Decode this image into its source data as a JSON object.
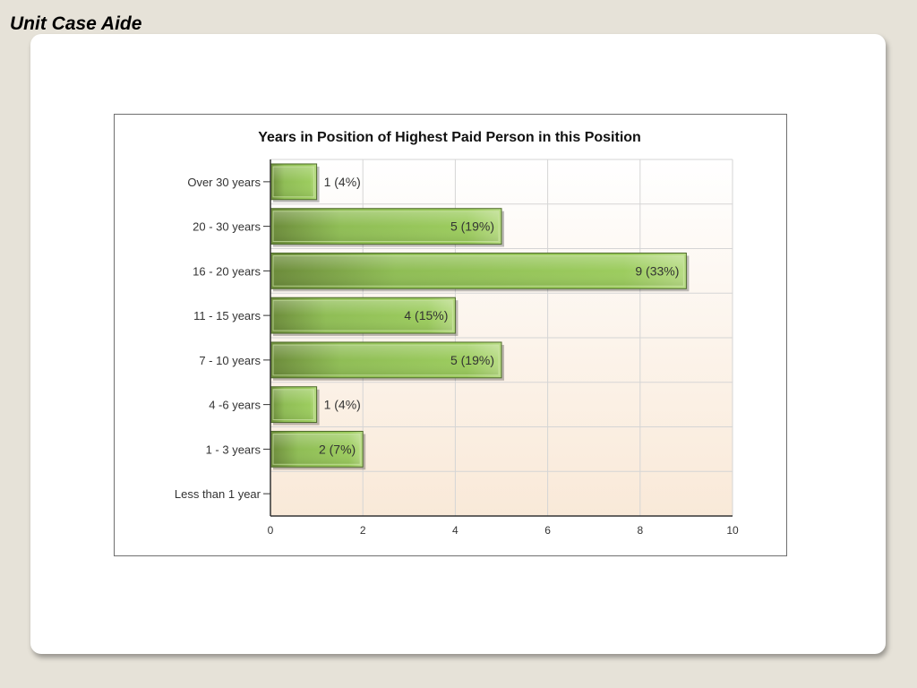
{
  "slide": {
    "title": "Unit Case Aide"
  },
  "colors": {
    "bar_dark": "#6b8a3a",
    "bar_mid": "#8fbd55",
    "bar_light": "#a8d46a",
    "bar_border": "#4e6a2a",
    "plot_top": "#ffffff",
    "plot_bottom": "#f9e9d8",
    "grid": "#d5d5d5",
    "text": "#333333"
  },
  "chart_data": {
    "type": "bar",
    "orientation": "horizontal",
    "title": "Years in Position of Highest Paid Person in this Position",
    "categories": [
      "Over 30 years",
      "20 - 30 years",
      "16 - 20 years",
      "11 - 15 years",
      "7 - 10 years",
      "4 -6 years",
      "1 - 3 years",
      "Less than 1 year"
    ],
    "values": [
      1,
      5,
      9,
      4,
      5,
      1,
      2,
      0
    ],
    "data_labels": [
      "1 (4%)",
      "5 (19%)",
      "9 (33%)",
      "4 (15%)",
      "5 (19%)",
      "1 (4%)",
      "2 (7%)",
      ""
    ],
    "xlim": [
      0,
      10
    ],
    "xticks": [
      "0",
      "2",
      "4",
      "6",
      "8",
      "10"
    ],
    "xlabel": "",
    "ylabel": "",
    "grid": true
  }
}
